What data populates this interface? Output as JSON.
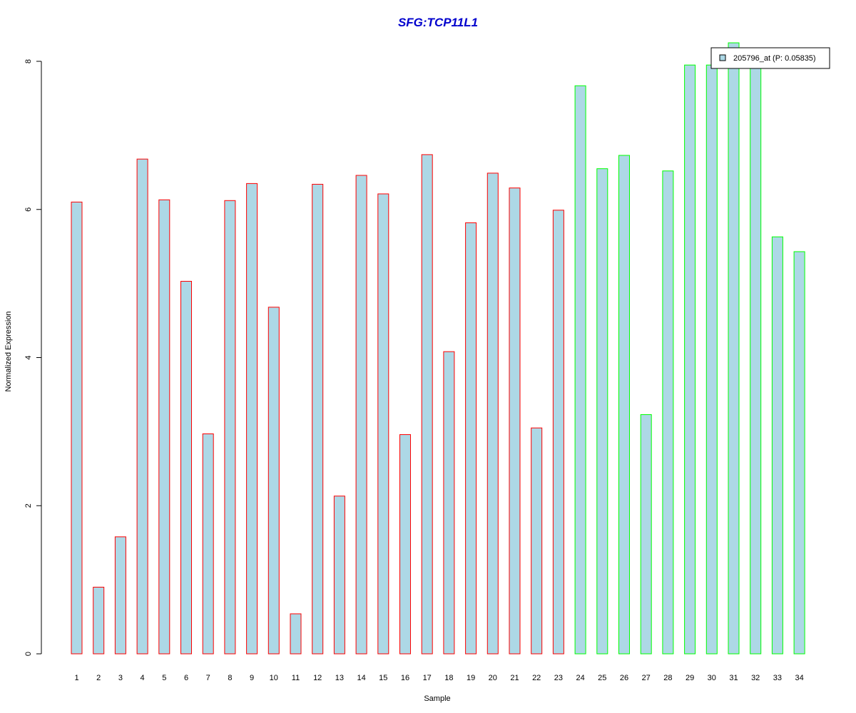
{
  "chart_data": {
    "type": "bar",
    "title": "SFG:TCP11L1",
    "xlabel": "Sample",
    "ylabel": "Normalized Expression",
    "ylim": [
      0,
      8
    ],
    "yticks": [
      "0",
      "2",
      "4",
      "6",
      "8"
    ],
    "grid": false,
    "categories": [
      "1",
      "2",
      "3",
      "4",
      "5",
      "6",
      "7",
      "8",
      "9",
      "10",
      "11",
      "12",
      "13",
      "14",
      "15",
      "16",
      "17",
      "18",
      "19",
      "20",
      "21",
      "22",
      "23",
      "24",
      "25",
      "26",
      "27",
      "28",
      "29",
      "30",
      "31",
      "32",
      "33",
      "34"
    ],
    "series": [
      {
        "name": "205796_at (P: 0.05835)",
        "values": [
          6.1,
          0.9,
          1.58,
          6.68,
          6.13,
          5.03,
          2.97,
          6.12,
          6.35,
          4.68,
          0.54,
          6.34,
          2.13,
          6.46,
          6.21,
          2.96,
          6.74,
          4.08,
          5.82,
          6.49,
          6.29,
          3.05,
          5.99,
          7.67,
          6.55,
          6.73,
          3.23,
          6.52,
          7.95,
          7.95,
          8.25,
          7.95,
          5.63,
          5.43
        ],
        "groups": [
          "red",
          "red",
          "red",
          "red",
          "red",
          "red",
          "red",
          "red",
          "red",
          "red",
          "red",
          "red",
          "red",
          "red",
          "red",
          "red",
          "red",
          "red",
          "red",
          "red",
          "red",
          "red",
          "red",
          "green",
          "green",
          "green",
          "green",
          "green",
          "green",
          "green",
          "green",
          "green",
          "green",
          "green"
        ]
      }
    ],
    "legend": {
      "position": "top-right",
      "label": "205796_at (P: 0.05835)"
    },
    "colors": {
      "bar_fill": "#add8e6",
      "border_red": "#ff0000",
      "border_green": "#00ff00",
      "title": "#0000cd",
      "axis": "#000000"
    }
  }
}
